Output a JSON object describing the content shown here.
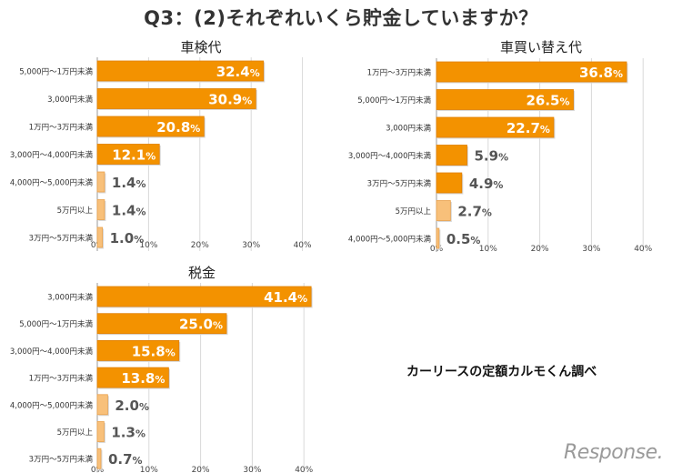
{
  "page": {
    "title": "Q3：(2)それぞれいくら貯金していますか？",
    "credit": "カーリースの定額カルモくん調べ",
    "logo": "Response."
  },
  "colors": {
    "bar": "#F39200",
    "bar_light": "#F8C07A",
    "label_light": "#ffffff",
    "label_dark": "#555555",
    "tick": "#444444"
  },
  "chart_data": [
    {
      "type": "bar",
      "orientation": "horizontal",
      "title": "車検代",
      "categories": [
        "5,000円～1万円未満",
        "3,000円未満",
        "1万円～3万円未満",
        "3,000円～4,000円未満",
        "4,000円～5,000円未満",
        "5万円以上",
        "3万円～5万円未満"
      ],
      "values": [
        32.4,
        30.9,
        20.8,
        12.1,
        1.4,
        1.4,
        1.0
      ],
      "labels": [
        "32.4%",
        "30.9%",
        "20.8%",
        "12.1%",
        "1.4%",
        "1.4%",
        "1.0%"
      ],
      "xlim": [
        0,
        40
      ],
      "ticks": [
        "0%",
        "10%",
        "20%",
        "30%",
        "40%"
      ]
    },
    {
      "type": "bar",
      "orientation": "horizontal",
      "title": "車買い替え代",
      "categories": [
        "1万円～3万円未満",
        "5,000円～1万円未満",
        "3,000円未満",
        "3,000円～4,000円未満",
        "3万円～5万円未満",
        "5万円以上",
        "4,000円～5,000円未満"
      ],
      "values": [
        36.8,
        26.5,
        22.7,
        5.9,
        4.9,
        2.7,
        0.5
      ],
      "labels": [
        "36.8%",
        "26.5%",
        "22.7%",
        "5.9%",
        "4.9%",
        "2.7%",
        "0.5%"
      ],
      "xlim": [
        0,
        40
      ],
      "ticks": [
        "0%",
        "10%",
        "20%",
        "30%",
        "40%"
      ]
    },
    {
      "type": "bar",
      "orientation": "horizontal",
      "title": "税金",
      "categories": [
        "3,000円未満",
        "5,000円～1万円未満",
        "3,000円～4,000円未満",
        "1万円～3万円未満",
        "4,000円～5,000円未満",
        "5万円以上",
        "3万円～5万円未満"
      ],
      "values": [
        41.4,
        25.0,
        15.8,
        13.8,
        2.0,
        1.3,
        0.7
      ],
      "labels": [
        "41.4%",
        "25.0%",
        "15.8%",
        "13.8%",
        "2.0%",
        "1.3%",
        "0.7%"
      ],
      "xlim": [
        0,
        40
      ],
      "ticks": [
        "0%",
        "10%",
        "20%",
        "30%",
        "40%"
      ]
    }
  ]
}
